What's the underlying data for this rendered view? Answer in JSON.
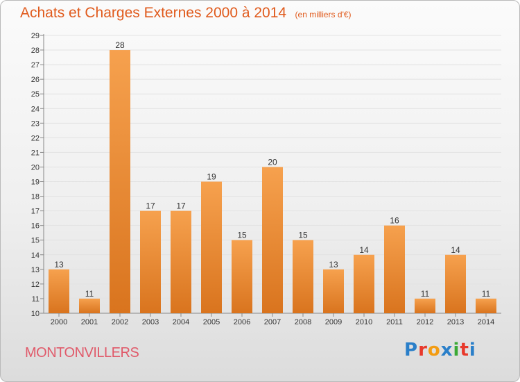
{
  "title": "Achats et Charges Externes 2000 à 2014",
  "subtitle": "(en milliers d'€)",
  "commune": "MONTONVILLERS",
  "logo": {
    "text": "Proxiti",
    "colors": [
      "#2a7fc9",
      "#e8392b",
      "#f39c12",
      "#2a7fc9",
      "#3aa935",
      "#e8392b",
      "#2a7fc9"
    ]
  },
  "colors": {
    "title": "#e05a1c",
    "bar_light": "#f6a14e",
    "bar_dark": "#d9741e",
    "commune": "#e05a6a"
  },
  "chart_data": {
    "type": "bar",
    "categories": [
      "2000",
      "2001",
      "2002",
      "2003",
      "2004",
      "2005",
      "2006",
      "2007",
      "2008",
      "2009",
      "2010",
      "2011",
      "2012",
      "2013",
      "2014"
    ],
    "values": [
      13,
      11,
      28,
      17,
      17,
      19,
      15,
      20,
      15,
      13,
      14,
      16,
      11,
      14,
      11
    ],
    "ylim": [
      10,
      29
    ],
    "yticks": [
      10,
      11,
      12,
      13,
      14,
      15,
      16,
      17,
      18,
      19,
      20,
      21,
      22,
      23,
      24,
      25,
      26,
      27,
      28,
      29
    ],
    "grid": true
  }
}
